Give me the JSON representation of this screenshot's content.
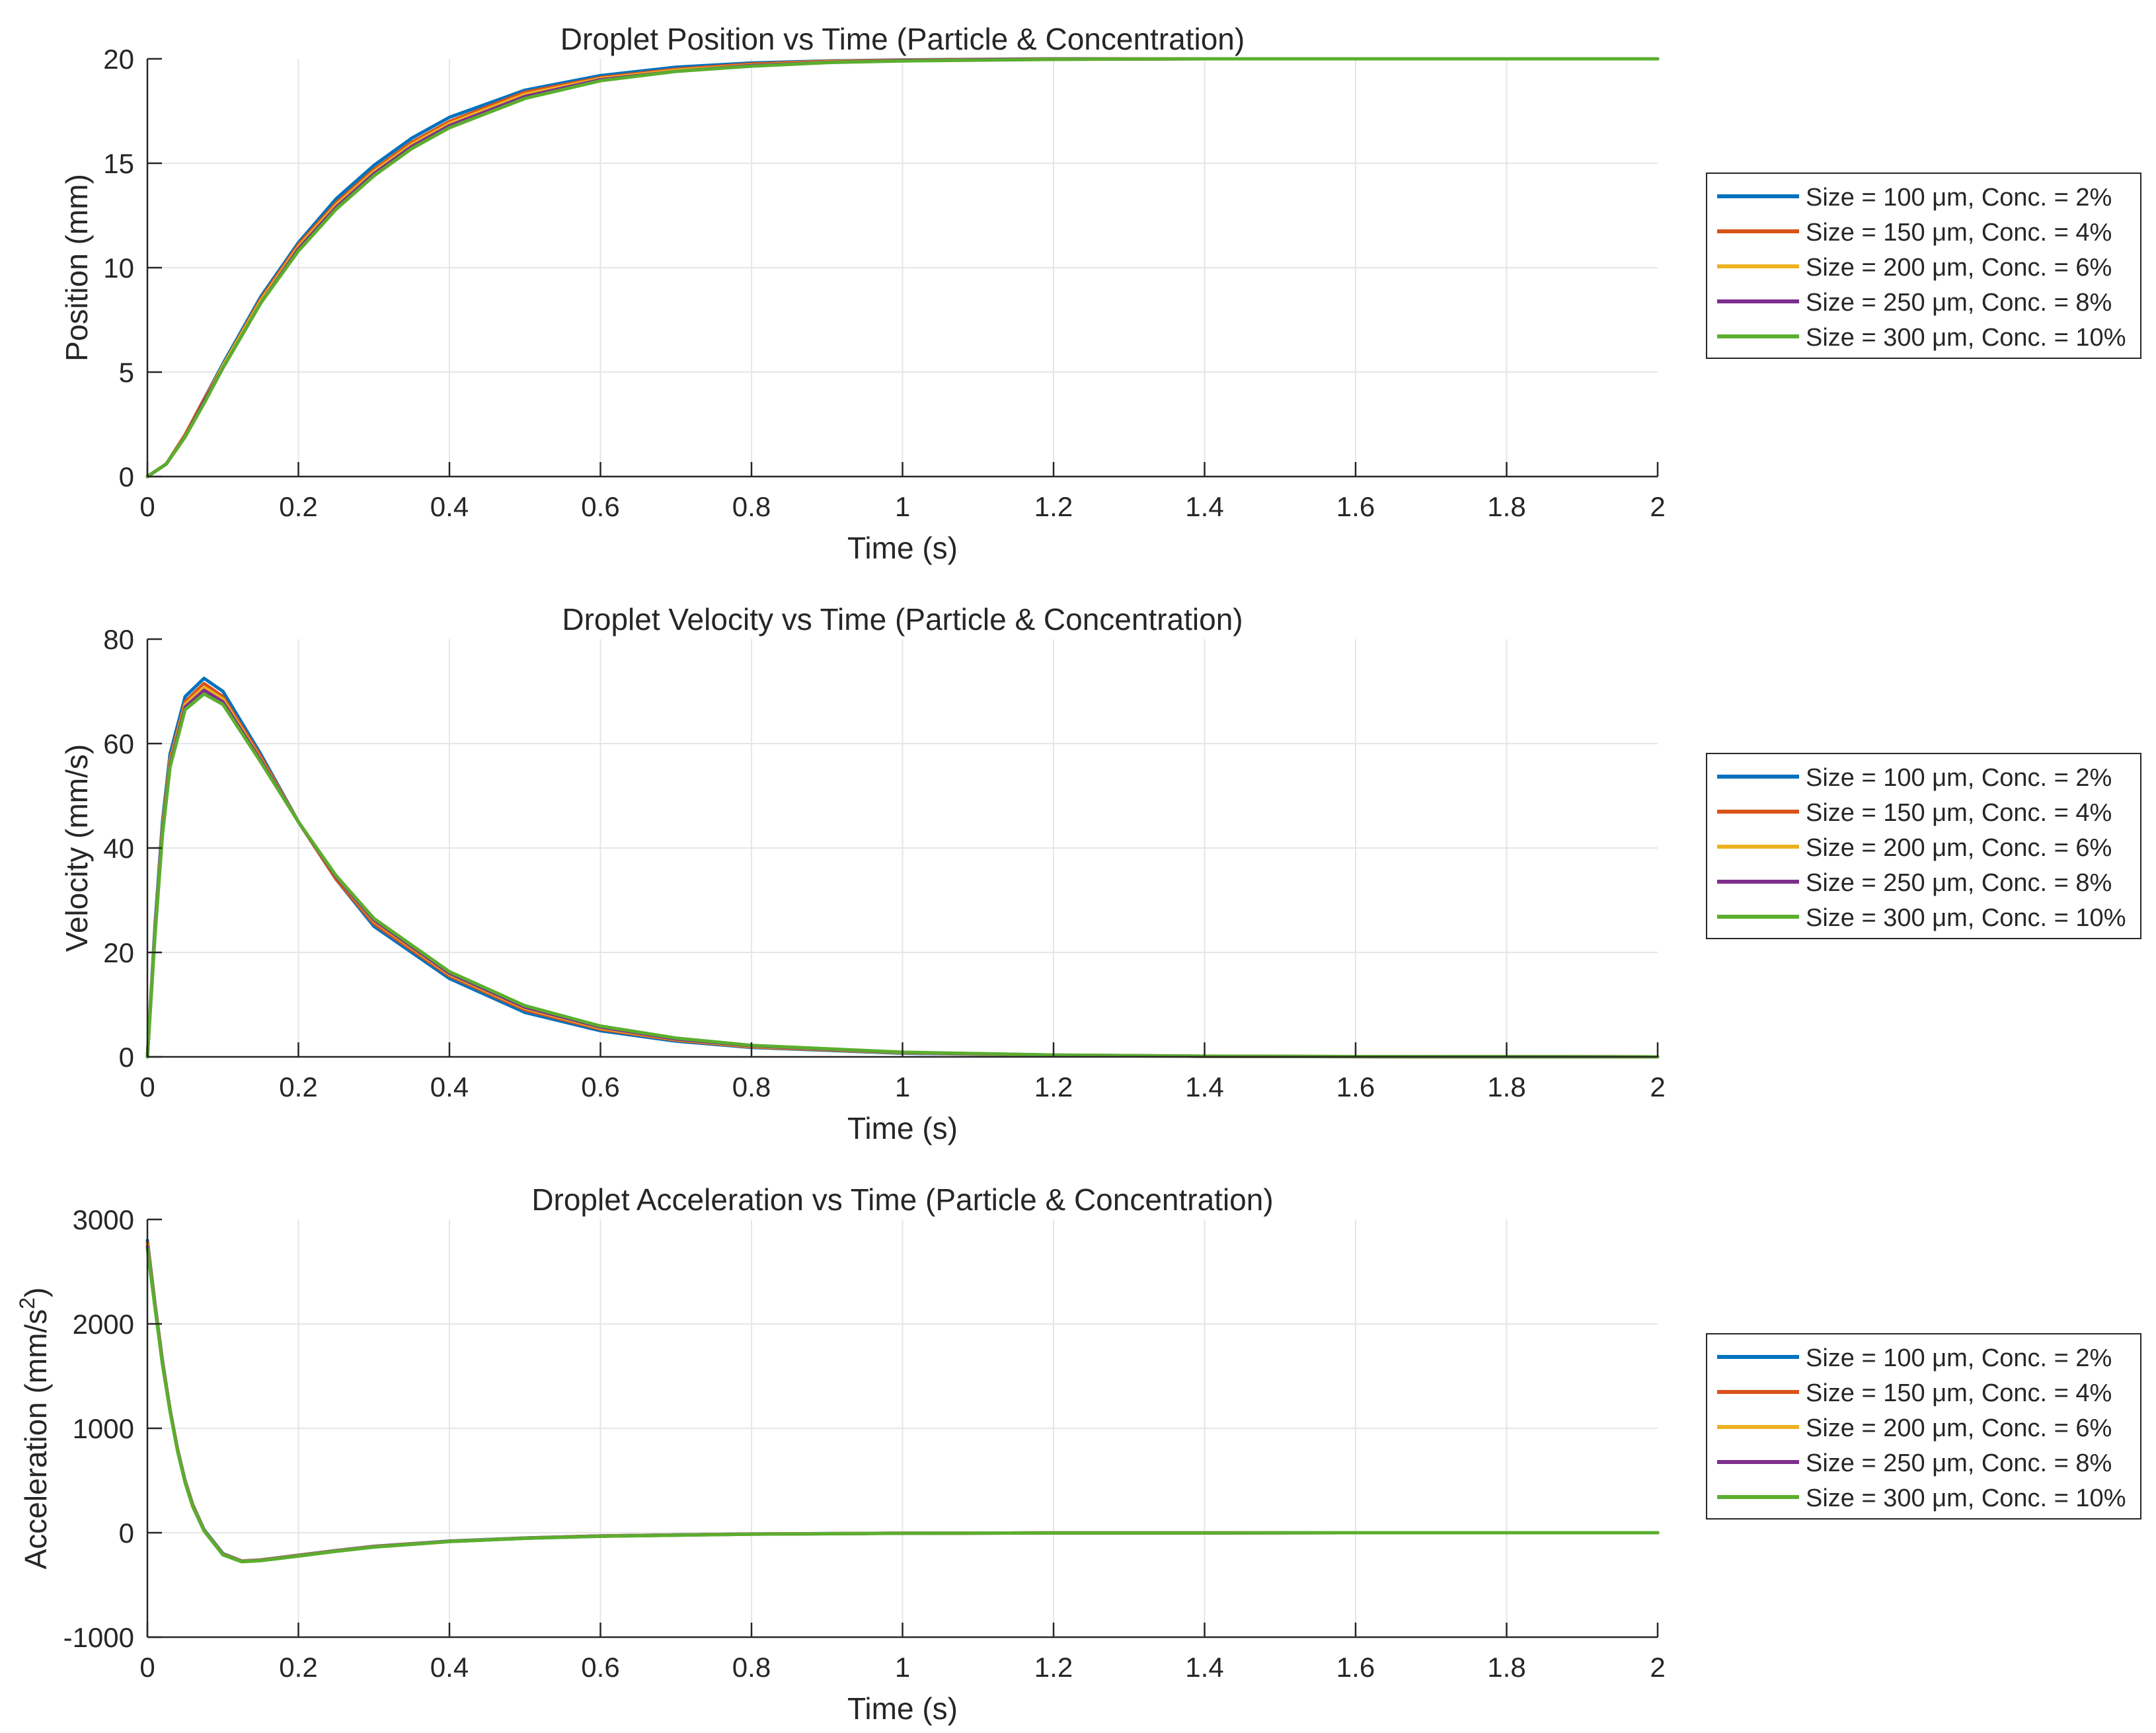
{
  "chart_data": [
    {
      "type": "line",
      "title": "Droplet Position vs Time (Particle & Concentration)",
      "xlabel": "Time (s)",
      "ylabel": "Position (mm)",
      "ylabel_superscript": "",
      "ylabel_suffix": "",
      "xlim": [
        0,
        2
      ],
      "ylim": [
        0,
        20
      ],
      "xticks": [
        0,
        0.2,
        0.4,
        0.6,
        0.8,
        1,
        1.2,
        1.4,
        1.6,
        1.8,
        2
      ],
      "xtick_labels": [
        "0",
        "0.2",
        "0.4",
        "0.6",
        "0.8",
        "1",
        "1.2",
        "1.4",
        "1.6",
        "1.8",
        "2"
      ],
      "yticks": [
        0,
        5,
        10,
        15,
        20
      ],
      "ytick_labels": [
        "0",
        "5",
        "10",
        "15",
        "20"
      ],
      "grid": true,
      "legend_position": "outside-right",
      "x": [
        0,
        0.025,
        0.05,
        0.075,
        0.1,
        0.15,
        0.2,
        0.25,
        0.3,
        0.35,
        0.4,
        0.5,
        0.6,
        0.7,
        0.8,
        0.9,
        1.0,
        1.2,
        1.4,
        1.6,
        1.8,
        2.0
      ],
      "series": [
        {
          "name": "Size = 100 μm, Conc. = 2%",
          "color": "#0072BD",
          "y": [
            0,
            0.6,
            2.0,
            3.7,
            5.4,
            8.6,
            11.2,
            13.3,
            14.9,
            16.2,
            17.2,
            18.5,
            19.2,
            19.6,
            19.8,
            19.9,
            19.95,
            20,
            20,
            20,
            20,
            20
          ]
        },
        {
          "name": "Size = 150 μm, Conc. = 4%",
          "color": "#D95319",
          "y": [
            0,
            0.6,
            2.0,
            3.7,
            5.3,
            8.5,
            11.1,
            13.1,
            14.7,
            16.0,
            17.0,
            18.4,
            19.1,
            19.5,
            19.75,
            19.88,
            19.94,
            19.99,
            20,
            20,
            20,
            20
          ]
        },
        {
          "name": "Size = 200 μm, Conc. = 6%",
          "color": "#EDB120",
          "y": [
            0,
            0.6,
            1.9,
            3.6,
            5.3,
            8.4,
            11.0,
            13.0,
            14.6,
            15.9,
            16.9,
            18.3,
            19.05,
            19.45,
            19.7,
            19.85,
            19.93,
            19.98,
            20,
            20,
            20,
            20
          ]
        },
        {
          "name": "Size = 250 μm, Conc. = 8%",
          "color": "#7E2F8E",
          "y": [
            0,
            0.6,
            1.9,
            3.6,
            5.2,
            8.3,
            10.9,
            12.9,
            14.5,
            15.8,
            16.8,
            18.2,
            19.0,
            19.4,
            19.68,
            19.83,
            19.92,
            19.98,
            20,
            20,
            20,
            20
          ]
        },
        {
          "name": "Size = 300 μm, Conc. = 10%",
          "color": "#5BAE2E",
          "y": [
            0,
            0.6,
            1.9,
            3.5,
            5.2,
            8.3,
            10.8,
            12.8,
            14.4,
            15.7,
            16.7,
            18.1,
            18.95,
            19.4,
            19.65,
            19.82,
            19.9,
            19.97,
            20,
            20,
            20,
            20
          ]
        }
      ]
    },
    {
      "type": "line",
      "title": "Droplet Velocity vs Time (Particle & Concentration)",
      "xlabel": "Time (s)",
      "ylabel": "Velocity (mm/s)",
      "ylabel_superscript": "",
      "ylabel_suffix": "",
      "xlim": [
        0,
        2
      ],
      "ylim": [
        0,
        80
      ],
      "xticks": [
        0,
        0.2,
        0.4,
        0.6,
        0.8,
        1,
        1.2,
        1.4,
        1.6,
        1.8,
        2
      ],
      "xtick_labels": [
        "0",
        "0.2",
        "0.4",
        "0.6",
        "0.8",
        "1",
        "1.2",
        "1.4",
        "1.6",
        "1.8",
        "2"
      ],
      "yticks": [
        0,
        20,
        40,
        60,
        80
      ],
      "ytick_labels": [
        "0",
        "20",
        "40",
        "60",
        "80"
      ],
      "grid": true,
      "legend_position": "outside-right",
      "x": [
        0,
        0.01,
        0.02,
        0.03,
        0.05,
        0.075,
        0.1,
        0.15,
        0.2,
        0.25,
        0.3,
        0.4,
        0.5,
        0.6,
        0.7,
        0.8,
        1.0,
        1.2,
        1.4,
        1.6,
        1.8,
        2.0
      ],
      "series": [
        {
          "name": "Size = 100 μm, Conc. = 2%",
          "color": "#0072BD",
          "y": [
            0,
            25,
            45,
            58,
            69,
            72.5,
            70,
            58,
            45,
            34,
            25,
            15,
            8.5,
            5,
            3,
            1.8,
            0.7,
            0.3,
            0.1,
            0.05,
            0.02,
            0
          ]
        },
        {
          "name": "Size = 150 μm, Conc. = 4%",
          "color": "#D95319",
          "y": [
            0,
            24,
            44,
            57,
            68,
            71.5,
            69,
            57.5,
            45,
            34,
            25.5,
            15.5,
            9,
            5.3,
            3.2,
            1.9,
            0.8,
            0.3,
            0.1,
            0.05,
            0.02,
            0
          ]
        },
        {
          "name": "Size = 200 μm, Conc. = 6%",
          "color": "#EDB120",
          "y": [
            0,
            24,
            43.5,
            56.5,
            67.5,
            70.8,
            68.5,
            57,
            45,
            34.5,
            26,
            15.8,
            9.3,
            5.5,
            3.3,
            2.0,
            0.8,
            0.3,
            0.12,
            0.05,
            0.02,
            0
          ]
        },
        {
          "name": "Size = 250 μm, Conc. = 8%",
          "color": "#7E2F8E",
          "y": [
            0,
            23.5,
            43,
            56,
            67,
            70.2,
            68,
            56.8,
            45,
            34.5,
            26.2,
            16,
            9.5,
            5.7,
            3.4,
            2.1,
            0.85,
            0.35,
            0.13,
            0.05,
            0.02,
            0
          ]
        },
        {
          "name": "Size = 300 μm, Conc. = 10%",
          "color": "#5BAE2E",
          "y": [
            0,
            23,
            42.5,
            55.5,
            66.5,
            69.5,
            67.5,
            56.5,
            45,
            34.7,
            26.5,
            16.3,
            9.8,
            5.9,
            3.6,
            2.2,
            0.9,
            0.35,
            0.14,
            0.06,
            0.02,
            0
          ]
        }
      ]
    },
    {
      "type": "line",
      "title": "Droplet Acceleration vs Time (Particle & Concentration)",
      "xlabel": "Time (s)",
      "ylabel": "Acceleration (mm/s",
      "ylabel_superscript": "2",
      "ylabel_suffix": ")",
      "xlim": [
        0,
        2
      ],
      "ylim": [
        -1000,
        3000
      ],
      "xticks": [
        0,
        0.2,
        0.4,
        0.6,
        0.8,
        1,
        1.2,
        1.4,
        1.6,
        1.8,
        2
      ],
      "xtick_labels": [
        "0",
        "0.2",
        "0.4",
        "0.6",
        "0.8",
        "1",
        "1.2",
        "1.4",
        "1.6",
        "1.8",
        "2"
      ],
      "yticks": [
        -1000,
        0,
        1000,
        2000,
        3000
      ],
      "ytick_labels": [
        "-1000",
        "0",
        "1000",
        "2000",
        "3000"
      ],
      "grid": true,
      "legend_position": "outside-right",
      "x": [
        0,
        0.01,
        0.02,
        0.03,
        0.04,
        0.05,
        0.06,
        0.075,
        0.1,
        0.125,
        0.15,
        0.2,
        0.25,
        0.3,
        0.4,
        0.5,
        0.6,
        0.8,
        1.0,
        1.2,
        1.4,
        1.6,
        1.8,
        2.0
      ],
      "series": [
        {
          "name": "Size = 100 μm, Conc. = 2%",
          "color": "#0072BD",
          "y": [
            2800,
            2200,
            1650,
            1180,
            800,
            500,
            270,
            30,
            -200,
            -270,
            -260,
            -215,
            -170,
            -130,
            -80,
            -50,
            -30,
            -12,
            -5,
            -2,
            -1,
            0,
            0,
            0
          ]
        },
        {
          "name": "Size = 150 μm, Conc. = 4%",
          "color": "#D95319",
          "y": [
            2780,
            2190,
            1640,
            1175,
            795,
            495,
            265,
            25,
            -205,
            -272,
            -262,
            -218,
            -172,
            -132,
            -82,
            -51,
            -31,
            -12,
            -5,
            -2,
            -1,
            0,
            0,
            0
          ]
        },
        {
          "name": "Size = 200 μm, Conc. = 6%",
          "color": "#EDB120",
          "y": [
            2760,
            2180,
            1630,
            1170,
            790,
            490,
            260,
            22,
            -208,
            -274,
            -264,
            -220,
            -174,
            -134,
            -83,
            -52,
            -32,
            -13,
            -5,
            -2,
            -1,
            0,
            0,
            0
          ]
        },
        {
          "name": "Size = 250 μm, Conc. = 8%",
          "color": "#7E2F8E",
          "y": [
            2740,
            2170,
            1620,
            1165,
            785,
            485,
            255,
            20,
            -210,
            -276,
            -266,
            -222,
            -176,
            -136,
            -84,
            -53,
            -33,
            -13,
            -5,
            -2,
            -1,
            0,
            0,
            0
          ]
        },
        {
          "name": "Size = 300 μm, Conc. = 10%",
          "color": "#5BAE2E",
          "y": [
            2720,
            2160,
            1610,
            1160,
            780,
            480,
            250,
            18,
            -212,
            -278,
            -268,
            -224,
            -178,
            -138,
            -85,
            -54,
            -34,
            -14,
            -6,
            -2,
            -1,
            0,
            0,
            0
          ]
        }
      ]
    }
  ]
}
